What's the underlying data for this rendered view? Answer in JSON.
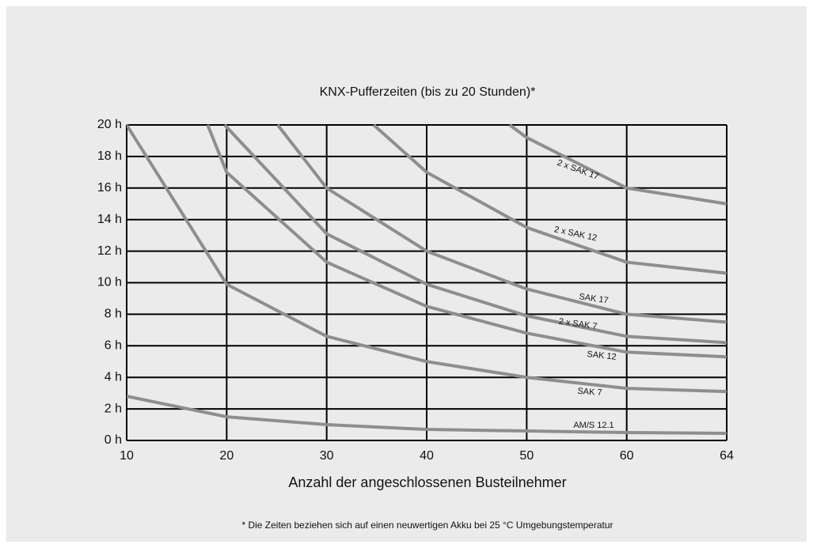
{
  "chart_data": {
    "type": "line",
    "title": "KNX-Pufferzeiten (bis zu 20 Stunden)*",
    "xlabel": "Anzahl der angeschlossenen Busteilnehmer",
    "footnote": "* Die Zeiten beziehen sich auf einen neuwertigen Akku bei 25 °C Umgebungstemperatur",
    "xlim": [
      10,
      64
    ],
    "xticks": [
      10,
      20,
      30,
      40,
      50,
      60,
      64
    ],
    "ylim": [
      0,
      20
    ],
    "yticks": [
      {
        "value": 0,
        "label": "0 h"
      },
      {
        "value": 2,
        "label": "2 h"
      },
      {
        "value": 4,
        "label": "4 h"
      },
      {
        "value": 6,
        "label": "6 h"
      },
      {
        "value": 8,
        "label": "8 h"
      },
      {
        "value": 10,
        "label": "10 h"
      },
      {
        "value": 12,
        "label": "12 h"
      },
      {
        "value": 14,
        "label": "14 h"
      },
      {
        "value": 16,
        "label": "16 h"
      },
      {
        "value": 18,
        "label": "18 h"
      },
      {
        "value": 20,
        "label": "20 h"
      }
    ],
    "grid": true,
    "color": "#8e8e8e",
    "series": [
      {
        "name": "2 x SAK 17",
        "x": [
          48.3,
          50,
          60,
          64
        ],
        "values": [
          20,
          19.2,
          16,
          15
        ]
      },
      {
        "name": "2 x SAK 12",
        "x": [
          34.7,
          40,
          50,
          60,
          64
        ],
        "values": [
          20,
          17,
          13.5,
          11.3,
          10.6
        ]
      },
      {
        "name": "SAK 17",
        "x": [
          25.1,
          30,
          40,
          50,
          60,
          64
        ],
        "values": [
          20,
          16,
          12,
          9.6,
          8.0,
          7.5
        ]
      },
      {
        "name": "2 x SAK 7",
        "x": [
          19.8,
          30,
          40,
          50,
          60,
          64
        ],
        "values": [
          20,
          13.1,
          9.9,
          7.9,
          6.6,
          6.2
        ]
      },
      {
        "name": "SAK 12",
        "x": [
          18.1,
          20,
          30,
          40,
          50,
          60,
          64
        ],
        "values": [
          20,
          17,
          11.3,
          8.5,
          6.8,
          5.6,
          5.3
        ]
      },
      {
        "name": "SAK 7",
        "x": [
          10,
          20,
          30,
          40,
          50,
          60,
          64
        ],
        "values": [
          20,
          9.9,
          6.6,
          5.0,
          4.0,
          3.3,
          3.1
        ]
      },
      {
        "name": "AM/S 12.1",
        "x": [
          10,
          20,
          30,
          40,
          50,
          60,
          64
        ],
        "values": [
          2.8,
          1.5,
          1.0,
          0.7,
          0.6,
          0.5,
          0.45
        ]
      }
    ]
  }
}
